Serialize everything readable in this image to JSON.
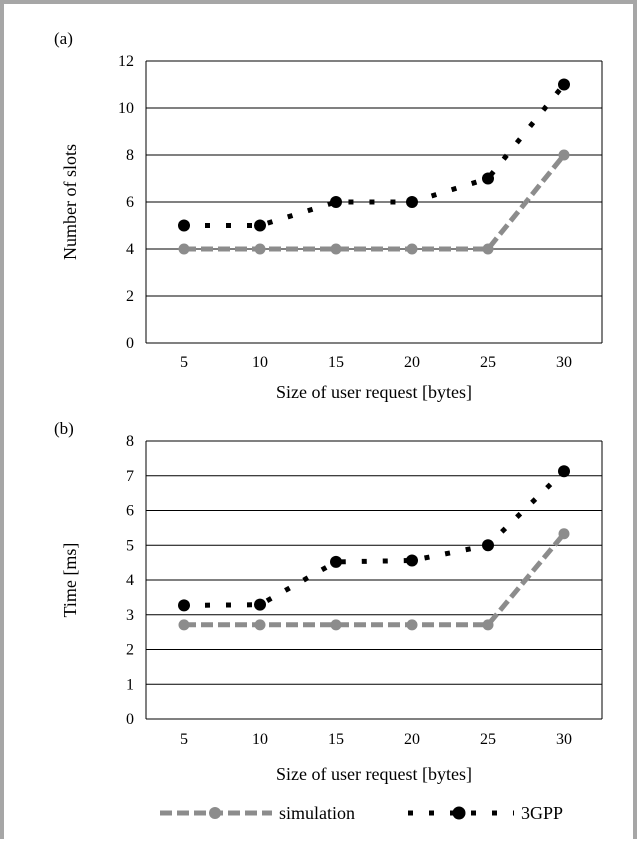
{
  "chart_data": [
    {
      "type": "line",
      "panel_label": "(a)",
      "categories": [
        "5",
        "10",
        "15",
        "20",
        "25",
        "30"
      ],
      "x": [
        5,
        10,
        15,
        20,
        25,
        30
      ],
      "xlabel": "Size of user request [bytes]",
      "ylabel": "Number of slots",
      "ylim": [
        0,
        12
      ],
      "yticks": [
        "0",
        "2",
        "4",
        "6",
        "8",
        "10",
        "12"
      ],
      "grid": true,
      "series": [
        {
          "name": "simulation",
          "values": [
            4,
            4,
            4,
            4,
            4,
            8
          ],
          "color": "#8c8c8c",
          "style": "dashed-line-circle"
        },
        {
          "name": "3GPP",
          "values": [
            5,
            5,
            6,
            6,
            7,
            11
          ],
          "color": "#000000",
          "style": "dotted-line-circle"
        }
      ]
    },
    {
      "type": "line",
      "panel_label": "(b)",
      "categories": [
        "5",
        "10",
        "15",
        "20",
        "25",
        "30"
      ],
      "x": [
        5,
        10,
        15,
        20,
        25,
        30
      ],
      "xlabel": "Size of user request [bytes]",
      "ylabel": "Time [ms]",
      "ylim": [
        0,
        8
      ],
      "yticks": [
        "0",
        "1",
        "2",
        "3",
        "4",
        "5",
        "6",
        "7",
        "8"
      ],
      "grid": true,
      "series": [
        {
          "name": "simulation",
          "values": [
            2.71,
            2.71,
            2.71,
            2.71,
            2.71,
            5.33
          ],
          "color": "#8c8c8c",
          "style": "dashed-line-circle"
        },
        {
          "name": "3GPP",
          "values": [
            3.27,
            3.29,
            4.52,
            4.56,
            5.0,
            7.13
          ],
          "color": "#000000",
          "style": "dotted-line-circle"
        }
      ]
    }
  ],
  "legend": {
    "position": "bottom",
    "items": [
      {
        "label": "simulation",
        "color": "#8c8c8c"
      },
      {
        "label": "3GPP",
        "color": "#000000"
      }
    ]
  }
}
